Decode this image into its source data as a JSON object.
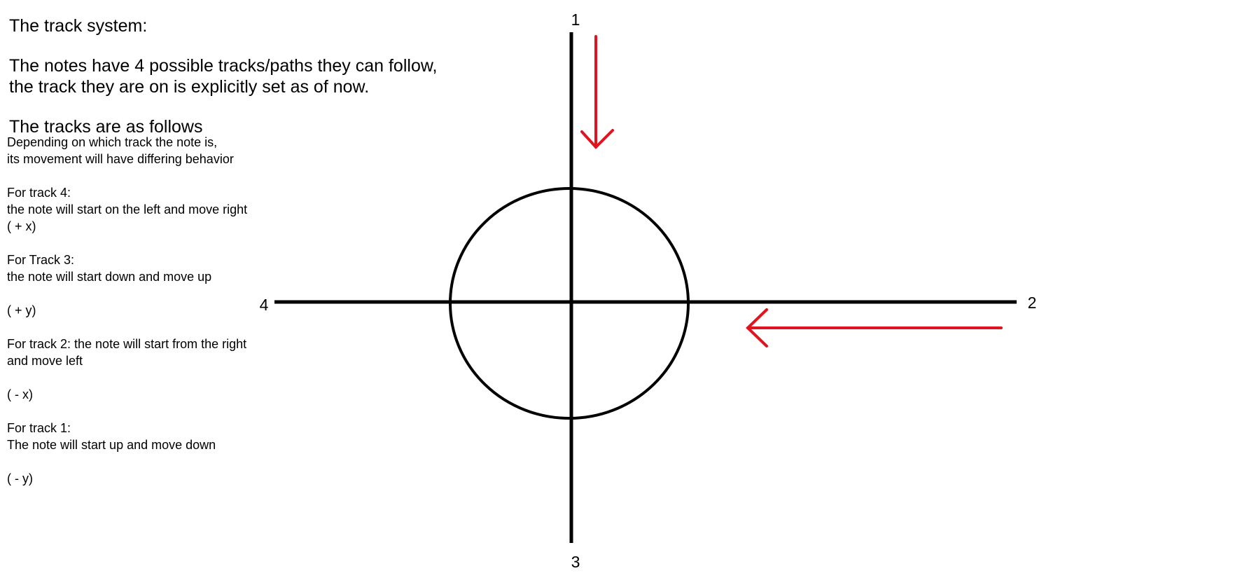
{
  "heading": "The track system:",
  "intro": [
    "The notes have 4 possible tracks/paths they can follow,",
    "the track they are on is explicitly set as of now."
  ],
  "tracks_heading": "The tracks are as follows",
  "description": [
    "Depending on which track the note is,",
    "its movement will have differing behavior",
    "For track 4:",
    "the note will start on the left and move right",
    "( + x)",
    "For Track 3:",
    "the note will start down and move up",
    "( + y)",
    "For track 2: the note will start from the right",
    "and move left",
    "( - x)",
    "For track 1:",
    "The note will start up and move down",
    "( - y)"
  ],
  "diagram": {
    "track_labels": {
      "top": "1",
      "right": "2",
      "bottom": "3",
      "left": "4"
    },
    "axis_color": "#000000",
    "arrow_color": "#e0141e"
  }
}
